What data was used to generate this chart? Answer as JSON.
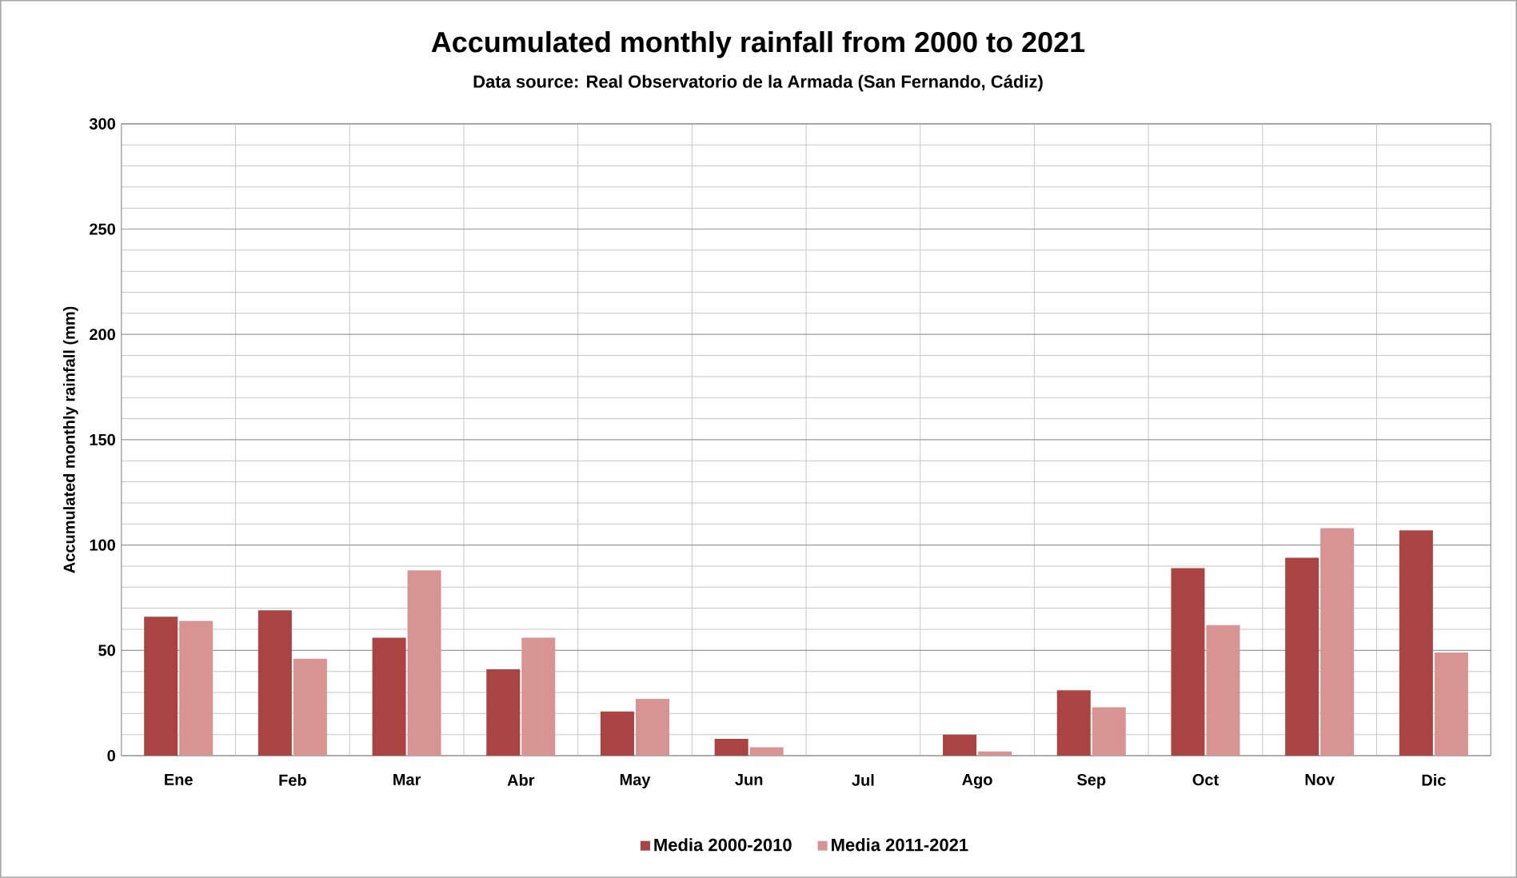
{
  "chart_data": {
    "type": "bar",
    "title": "Accumulated monthly rainfall from 2000 to 2021",
    "subtitle": "Data source: Real Observatorio de la Armada (San Fernando, Cádiz)",
    "ylabel": "Accumulated monthly rainfall  (mm)",
    "categories": [
      "Ene",
      "Feb",
      "Mar",
      "Abr",
      "May",
      "Jun",
      "Jul",
      "Ago",
      "Sep",
      "Oct",
      "Nov",
      "Dic"
    ],
    "series": [
      {
        "name": "Media 2000-2010",
        "color": "#a94443",
        "values": [
          66,
          69,
          56,
          41,
          21,
          8,
          0,
          10,
          31,
          89,
          94,
          107
        ]
      },
      {
        "name": "Media 2011-2021",
        "color": "#d89493",
        "values": [
          64,
          46,
          88,
          56,
          27,
          4,
          0,
          2,
          23,
          62,
          108,
          49
        ]
      }
    ],
    "ylim": [
      0,
      300
    ],
    "yticks": [
      0,
      50,
      100,
      150,
      200,
      250,
      300
    ],
    "grid": true,
    "legend": "bottom"
  }
}
